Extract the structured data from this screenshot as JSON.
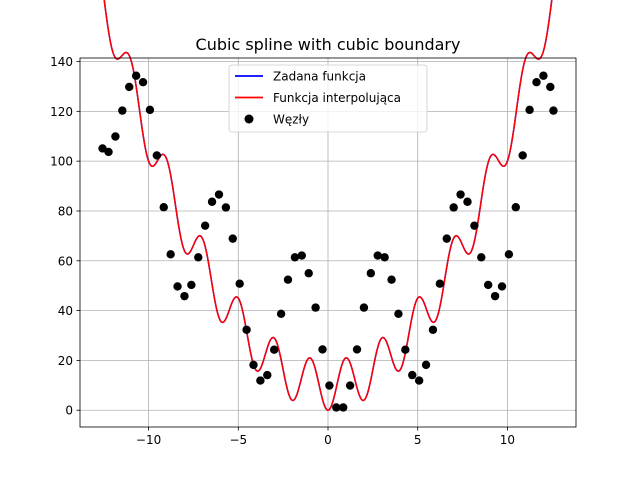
{
  "chart_data": {
    "type": "line",
    "title": "Cubic spline with cubic boundary",
    "xlabel": "",
    "ylabel": "",
    "xlim": [
      -13.823,
      13.823
    ],
    "ylim": [
      -6.74,
      141.42
    ],
    "x_ticks": [
      -10,
      -5,
      0,
      5,
      10
    ],
    "y_ticks": [
      0,
      20,
      40,
      60,
      80,
      100,
      120,
      140
    ],
    "x_tick_labels": [
      "−10",
      "−5",
      "0",
      "5",
      "10"
    ],
    "y_tick_labels": [
      "0",
      "20",
      "40",
      "60",
      "80",
      "100",
      "120",
      "140"
    ],
    "grid": true,
    "legend_position": "top-center",
    "legend": [
      {
        "label": "Zadana funkcja",
        "kind": "line",
        "color": "#0000ff"
      },
      {
        "label": "Funkcja interpolująca",
        "kind": "line",
        "color": "#ff0000"
      },
      {
        "label": "Węzły",
        "kind": "marker",
        "color": "#000000"
      }
    ],
    "series": [
      {
        "name": "Zadana funkcja",
        "color": "#0000ff",
        "function": "x^2 - 10*cos(pi*x) + 10",
        "x_range": [
          -12.566,
          12.566
        ]
      },
      {
        "name": "Funkcja interpolująca",
        "color": "#ff0000",
        "function": "cubic spline through nodes",
        "x_range": [
          -12.566,
          12.566
        ]
      },
      {
        "name": "Węzły",
        "color": "#000000",
        "marker": "circle",
        "x": [
          -12.566,
          -12.233,
          -11.849,
          -11.464,
          -11.079,
          -10.694,
          -10.309,
          -9.925,
          -9.54,
          -9.155,
          -8.77,
          -8.386,
          -8.001,
          -7.616,
          -7.231,
          -6.847,
          -6.462,
          -6.077,
          -5.692,
          -5.308,
          -4.923,
          -4.538,
          -4.153,
          -3.769,
          -3.384,
          -2.999,
          -2.614,
          -2.23,
          -1.845,
          -1.46,
          -1.075,
          -0.691,
          -0.306,
          0.079,
          0.464,
          0.848,
          1.233,
          1.618,
          2.003,
          2.387,
          2.772,
          3.157,
          3.542,
          3.926,
          4.311,
          4.696,
          5.081,
          5.465,
          5.85,
          6.235,
          6.62,
          7.005,
          7.389,
          7.774,
          8.159,
          8.544,
          8.928,
          9.313,
          9.698,
          10.083,
          10.467,
          10.852,
          11.237,
          11.622,
          12.006,
          12.391,
          12.566
        ],
        "y": [
          105.1,
          103.7,
          109.9,
          120.3,
          129.8,
          134.3,
          131.7,
          120.6,
          102.3,
          81.5,
          62.6,
          49.7,
          45.8,
          50.3,
          61.4,
          74.1,
          83.7,
          86.6,
          81.4,
          68.9,
          50.8,
          32.3,
          18.2,
          11.9,
          14.1,
          24.3,
          38.7,
          52.4,
          61.4,
          62.1,
          55.0,
          41.2,
          24.4,
          9.9,
          1.1,
          1.1,
          9.9,
          24.4,
          41.2,
          55.0,
          62.1,
          61.4,
          52.4,
          38.7,
          24.3,
          14.1,
          11.9,
          18.2,
          32.3,
          50.8,
          68.9,
          81.4,
          86.6,
          83.7,
          74.1,
          61.4,
          50.3,
          45.8,
          49.7,
          62.6,
          81.5,
          102.3,
          120.6,
          131.7,
          134.3,
          129.8,
          120.3
        ]
      }
    ]
  }
}
